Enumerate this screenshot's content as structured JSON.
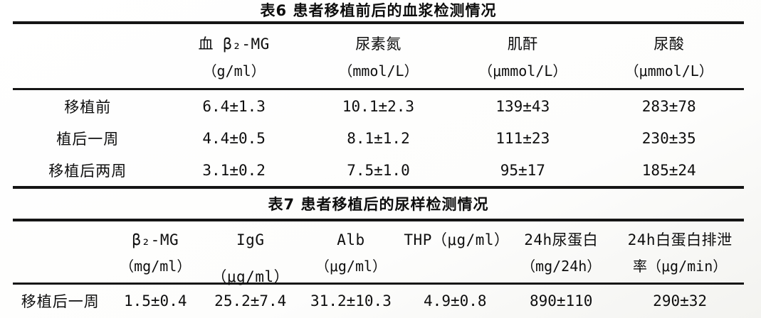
{
  "page": {
    "background_color": "#fdfdfc",
    "text_color": "#0e0e0e",
    "rule_color": "#151515"
  },
  "table6": {
    "title": "表6 患者移植前后的血浆检测情况",
    "columns": [
      {
        "name": "",
        "unit": ""
      },
      {
        "name": "血 β₂-MG",
        "unit": "（g/ml）"
      },
      {
        "name": "尿素氮",
        "unit": "（mmol/L）"
      },
      {
        "name": "肌酐",
        "unit": "（μmmol/L）"
      },
      {
        "name": "尿酸",
        "unit": "（μmmol/L）"
      }
    ],
    "rows": [
      {
        "label": "移植前",
        "values": [
          "6.4±1.3",
          "10.1±2.3",
          "139±43",
          "283±78"
        ]
      },
      {
        "label": "植后一周",
        "values": [
          "4.4±0.5",
          "8.1±1.2",
          "111±23",
          "230±35"
        ]
      },
      {
        "label": "移植后两周",
        "values": [
          "3.1±0.2",
          "7.5±1.0",
          "95±17",
          "185±24"
        ]
      }
    ]
  },
  "table7": {
    "title": "表7 患者移植后的尿样检测情况",
    "columns": [
      {
        "name": "",
        "unit": ""
      },
      {
        "name": "β₂-MG",
        "unit": "（mg/ml）"
      },
      {
        "name": "IgG（μg/ml）",
        "unit": ""
      },
      {
        "name": "Alb",
        "unit": "（μg/ml）"
      },
      {
        "name": "THP（μg/ml）",
        "unit": ""
      },
      {
        "name": "24h尿蛋白",
        "unit": "（mg/24h）"
      },
      {
        "name": "24h白蛋白排泄",
        "unit": "率（μg/min）"
      }
    ],
    "rows": [
      {
        "label": "移植后一周",
        "values": [
          "1.5±0.4",
          "25.2±7.4",
          "31.2±10.3",
          "4.9±0.8",
          "890±110",
          "290±32"
        ]
      }
    ]
  }
}
